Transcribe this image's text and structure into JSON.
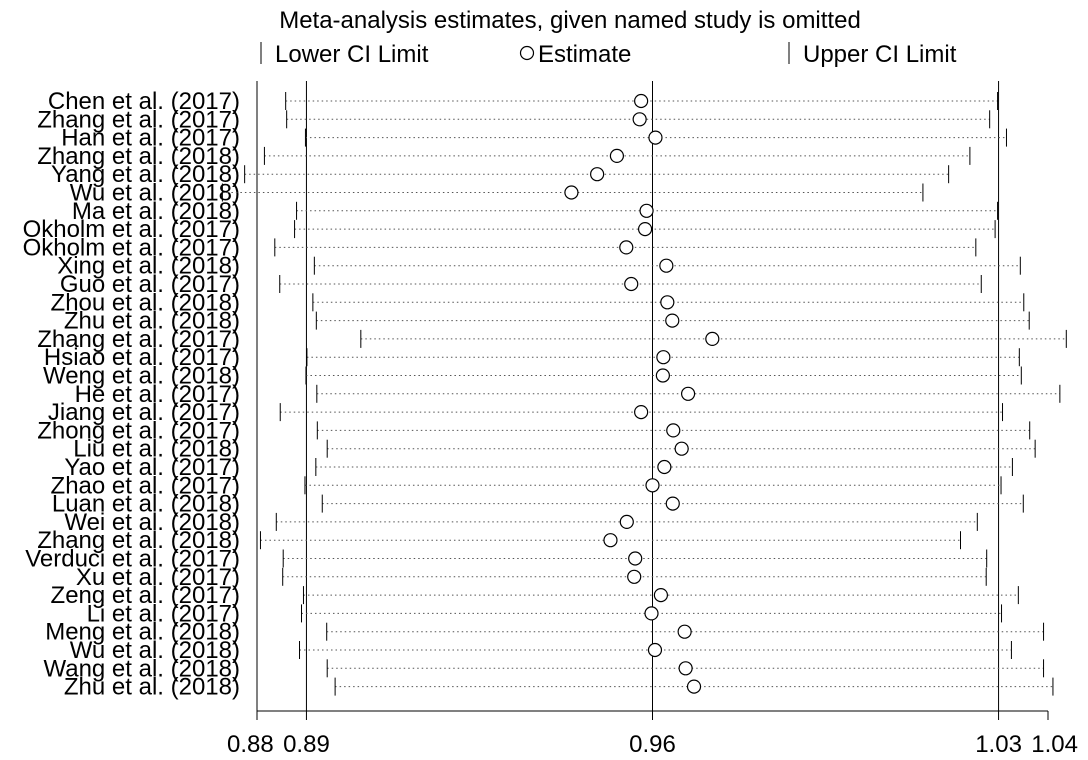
{
  "chart_data": {
    "type": "scatter",
    "title": "Meta-analysis estimates, given named study is omitted",
    "legend": {
      "position": "top",
      "entries": [
        {
          "key": "lower",
          "label": "Lower CI Limit",
          "marker": "bar"
        },
        {
          "key": "estimate",
          "label": "Estimate",
          "marker": "circle"
        },
        {
          "key": "upper",
          "label": "Upper CI Limit",
          "marker": "bar"
        }
      ]
    },
    "xlim": [
      0.88,
      1.04
    ],
    "xticks": [
      {
        "value": 0.88,
        "label": "0.88"
      },
      {
        "value": 0.89,
        "label": "0.89"
      },
      {
        "value": 0.96,
        "label": "0.96"
      },
      {
        "value": 1.03,
        "label": "1.03"
      },
      {
        "value": 1.04,
        "label": "1.04"
      }
    ],
    "reference_lines": [
      0.89,
      0.96,
      1.03
    ],
    "studies": [
      {
        "label": "Chen et al. (2017)",
        "lower": 0.8858,
        "estimate": 0.9577,
        "upper": 1.0298
      },
      {
        "label": "Zhang et al. (2017)",
        "lower": 0.886,
        "estimate": 0.9574,
        "upper": 1.0282
      },
      {
        "label": "Han et al. (2017)",
        "lower": 0.8898,
        "estimate": 0.9606,
        "upper": 1.0316
      },
      {
        "label": "Zhang et al. (2018)",
        "lower": 0.8815,
        "estimate": 0.9528,
        "upper": 1.0242
      },
      {
        "label": "Yang et al. (2018)",
        "lower": 0.8775,
        "estimate": 0.9488,
        "upper": 1.0199
      },
      {
        "label": "Wu et al. (2018)",
        "lower": 0.873,
        "estimate": 0.9436,
        "upper": 1.0147
      },
      {
        "label": "Ma et al. (2018)",
        "lower": 0.888,
        "estimate": 0.9588,
        "upper": 1.0298
      },
      {
        "label": "Okholm et al. (2017)",
        "lower": 0.8876,
        "estimate": 0.9585,
        "upper": 1.0293
      },
      {
        "label": "Okholm et al. (2017)",
        "lower": 0.8836,
        "estimate": 0.9547,
        "upper": 1.0254
      },
      {
        "label": "Xing et al. (2018)",
        "lower": 0.8916,
        "estimate": 0.9628,
        "upper": 1.0344
      },
      {
        "label": "Guo et al. (2017)",
        "lower": 0.8846,
        "estimate": 0.9557,
        "upper": 1.0265
      },
      {
        "label": "Zhou et al. (2018)",
        "lower": 0.8913,
        "estimate": 0.963,
        "upper": 1.0351
      },
      {
        "label": "Zhu et al. (2018)",
        "lower": 0.892,
        "estimate": 0.964,
        "upper": 1.0362
      },
      {
        "label": "Zhang et al. (2017)",
        "lower": 0.901,
        "estimate": 0.9721,
        "upper": 1.0437
      },
      {
        "label": "Hsiao et al. (2017)",
        "lower": 0.8901,
        "estimate": 0.9622,
        "upper": 1.0342
      },
      {
        "label": "Weng et al. (2018)",
        "lower": 0.8899,
        "estimate": 0.9621,
        "upper": 1.0346
      },
      {
        "label": "He et al. (2017)",
        "lower": 0.8921,
        "estimate": 0.9672,
        "upper": 1.0424
      },
      {
        "label": "Jiang et al. (2017)",
        "lower": 0.8847,
        "estimate": 0.9577,
        "upper": 1.0308
      },
      {
        "label": "Zhong et al. (2017)",
        "lower": 0.8922,
        "estimate": 0.9642,
        "upper": 1.0363
      },
      {
        "label": "Liu et al. (2018)",
        "lower": 0.8942,
        "estimate": 0.9659,
        "upper": 1.0374
      },
      {
        "label": "Yao et al. (2017)",
        "lower": 0.8919,
        "estimate": 0.9624,
        "upper": 1.0328
      },
      {
        "label": "Zhao et al. (2017)",
        "lower": 0.8897,
        "estimate": 0.96,
        "upper": 1.0305
      },
      {
        "label": "Luan et al. (2018)",
        "lower": 0.8932,
        "estimate": 0.9641,
        "upper": 1.035
      },
      {
        "label": "Wei et al. (2018)",
        "lower": 0.8839,
        "estimate": 0.9548,
        "upper": 1.0257
      },
      {
        "label": "Zhang et al. (2018)",
        "lower": 0.8807,
        "estimate": 0.9515,
        "upper": 1.0223
      },
      {
        "label": "Verduci et al. (2017)",
        "lower": 0.8853,
        "estimate": 0.9565,
        "upper": 1.0276
      },
      {
        "label": "Xu et al. (2017)",
        "lower": 0.8852,
        "estimate": 0.9563,
        "upper": 1.0275
      },
      {
        "label": "Zeng et al. (2017)",
        "lower": 0.8894,
        "estimate": 0.9617,
        "upper": 1.034
      },
      {
        "label": "Li et al. (2017)",
        "lower": 0.889,
        "estimate": 0.9598,
        "upper": 1.0306
      },
      {
        "label": "Meng et al. (2018)",
        "lower": 0.8941,
        "estimate": 0.9665,
        "upper": 1.0391
      },
      {
        "label": "Wu et al. (2018)",
        "lower": 0.8886,
        "estimate": 0.9605,
        "upper": 1.0326
      },
      {
        "label": "Wang et al. (2018)",
        "lower": 0.8942,
        "estimate": 0.9667,
        "upper": 1.0391
      },
      {
        "label": "Zhu et al. (2018)",
        "lower": 0.8958,
        "estimate": 0.9684,
        "upper": 1.041
      }
    ]
  }
}
